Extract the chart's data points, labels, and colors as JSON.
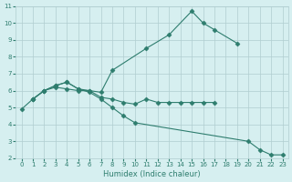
{
  "line1_x": [
    0,
    1,
    2,
    3,
    4,
    5,
    6,
    7,
    8,
    11,
    13,
    15,
    16,
    17,
    19
  ],
  "line1_y": [
    4.9,
    5.5,
    6.0,
    6.2,
    6.1,
    6.0,
    6.0,
    5.9,
    7.2,
    8.5,
    9.3,
    10.7,
    10.0,
    9.6,
    8.8
  ],
  "line2_x": [
    1,
    2,
    3,
    4,
    5,
    6,
    7,
    8,
    9,
    10,
    11,
    12,
    13,
    14,
    15,
    16,
    17
  ],
  "line2_y": [
    5.5,
    6.0,
    6.3,
    6.5,
    6.1,
    6.0,
    5.6,
    5.5,
    5.3,
    5.2,
    5.5,
    5.3,
    5.3,
    5.3,
    5.3,
    5.3,
    5.3
  ],
  "line3_x": [
    1,
    2,
    3,
    4,
    5,
    6,
    7,
    8,
    9,
    10,
    20,
    21,
    22,
    23
  ],
  "line3_y": [
    5.5,
    6.0,
    6.3,
    6.5,
    6.1,
    5.9,
    5.5,
    5.0,
    4.5,
    4.1,
    3.0,
    2.5,
    2.2,
    2.2
  ],
  "color": "#2e7d6e",
  "bg_color": "#d6eff0",
  "grid_color": "#b0cdd0",
  "xlabel": "Humidex (Indice chaleur)",
  "xlim": [
    -0.5,
    23.5
  ],
  "ylim": [
    2,
    11
  ],
  "xticks": [
    0,
    1,
    2,
    3,
    4,
    5,
    6,
    7,
    8,
    9,
    10,
    11,
    12,
    13,
    14,
    15,
    16,
    17,
    18,
    19,
    20,
    21,
    22,
    23
  ],
  "yticks": [
    2,
    3,
    4,
    5,
    6,
    7,
    8,
    9,
    10,
    11
  ],
  "figsize": [
    3.2,
    2.0
  ],
  "dpi": 100
}
